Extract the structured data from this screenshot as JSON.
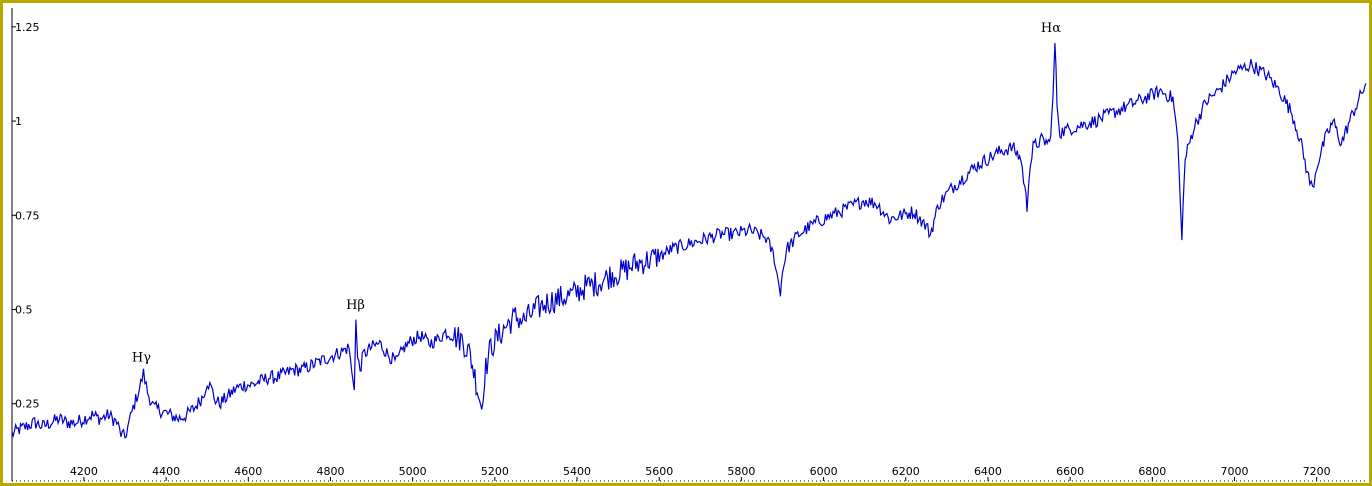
{
  "colors": {
    "frame": "#b8a800",
    "series": "#0000cc",
    "axis": "#000000"
  },
  "chart_data": {
    "type": "line",
    "title": "",
    "xlabel": "",
    "ylabel": "",
    "xlim": [
      4025,
      7320
    ],
    "ylim": [
      0.045,
      1.3
    ],
    "xticks": [
      4200,
      4400,
      4600,
      4800,
      5000,
      5200,
      5400,
      5600,
      5800,
      6000,
      6200,
      6400,
      6600,
      6800,
      7000,
      7200
    ],
    "xtick_labels": [
      "4200",
      "4400",
      "4600",
      "4800",
      "5000",
      "5200",
      "5400",
      "5600",
      "5800",
      "6000",
      "6200",
      "6400",
      "6600",
      "6800",
      "7000",
      "7200"
    ],
    "yticks": [
      0.25,
      0.5,
      0.75,
      1.0,
      1.25
    ],
    "ytick_labels": [
      "0.25",
      "0.5",
      "0.75",
      "1",
      "1.25"
    ],
    "grid": false,
    "legend": "none",
    "annotations": [
      {
        "text": "Hγ",
        "x": 4340,
        "y": 0.335
      },
      {
        "text": "Hβ",
        "x": 4861,
        "y": 0.475
      },
      {
        "text": "Hα",
        "x": 6563,
        "y": 1.21
      }
    ],
    "series": [
      {
        "x": [
          4025,
          4040,
          4060,
          4080,
          4100,
          4120,
          4140,
          4160,
          4180,
          4200,
          4220,
          4240,
          4260,
          4280,
          4290,
          4300,
          4310,
          4320,
          4335,
          4345,
          4355,
          4370,
          4390,
          4410,
          4430,
          4450,
          4470,
          4490,
          4500,
          4510,
          4520,
          4530,
          4550,
          4570,
          4590,
          4610,
          4630,
          4650,
          4670,
          4690,
          4710,
          4730,
          4750,
          4770,
          4790,
          4810,
          4830,
          4845,
          4852,
          4858,
          4862,
          4866,
          4872,
          4880,
          4900,
          4920,
          4940,
          4960,
          4980,
          5000,
          5020,
          5040,
          5060,
          5080,
          5100,
          5120,
          5140,
          5160,
          5168,
          5175,
          5190,
          5210,
          5230,
          5250,
          5270,
          5300,
          5330,
          5360,
          5390,
          5420,
          5450,
          5480,
          5510,
          5540,
          5570,
          5600,
          5630,
          5660,
          5690,
          5720,
          5750,
          5780,
          5820,
          5860,
          5880,
          5890,
          5895,
          5900,
          5910,
          5940,
          5980,
          6020,
          6060,
          6100,
          6130,
          6160,
          6190,
          6220,
          6250,
          6260,
          6280,
          6310,
          6340,
          6370,
          6400,
          6430,
          6460,
          6480,
          6490,
          6495,
          6500,
          6510,
          6530,
          6550,
          6558,
          6563,
          6568,
          6575,
          6600,
          6630,
          6660,
          6700,
          6740,
          6780,
          6820,
          6850,
          6862,
          6868,
          6872,
          6880,
          6900,
          6930,
          6960,
          7000,
          7040,
          7080,
          7110,
          7140,
          7160,
          7180,
          7190,
          7200,
          7220,
          7240,
          7260,
          7280,
          7300,
          7320
        ],
        "y": [
          0.17,
          0.18,
          0.19,
          0.2,
          0.19,
          0.2,
          0.21,
          0.2,
          0.2,
          0.21,
          0.22,
          0.21,
          0.22,
          0.2,
          0.17,
          0.16,
          0.2,
          0.24,
          0.29,
          0.33,
          0.28,
          0.24,
          0.23,
          0.22,
          0.21,
          0.22,
          0.24,
          0.27,
          0.31,
          0.29,
          0.26,
          0.25,
          0.27,
          0.29,
          0.3,
          0.3,
          0.31,
          0.32,
          0.32,
          0.33,
          0.34,
          0.34,
          0.35,
          0.36,
          0.37,
          0.38,
          0.39,
          0.4,
          0.33,
          0.3,
          0.47,
          0.37,
          0.34,
          0.38,
          0.4,
          0.41,
          0.38,
          0.36,
          0.4,
          0.42,
          0.43,
          0.41,
          0.42,
          0.44,
          0.43,
          0.42,
          0.38,
          0.28,
          0.24,
          0.33,
          0.4,
          0.43,
          0.46,
          0.48,
          0.47,
          0.5,
          0.52,
          0.53,
          0.54,
          0.56,
          0.57,
          0.59,
          0.6,
          0.62,
          0.63,
          0.64,
          0.66,
          0.67,
          0.68,
          0.69,
          0.7,
          0.7,
          0.71,
          0.69,
          0.64,
          0.57,
          0.55,
          0.6,
          0.66,
          0.7,
          0.73,
          0.75,
          0.77,
          0.79,
          0.78,
          0.74,
          0.75,
          0.76,
          0.72,
          0.7,
          0.78,
          0.82,
          0.85,
          0.88,
          0.9,
          0.92,
          0.93,
          0.9,
          0.82,
          0.77,
          0.86,
          0.93,
          0.95,
          0.94,
          1.05,
          1.21,
          1.05,
          0.97,
          0.98,
          0.99,
          1.0,
          1.02,
          1.04,
          1.06,
          1.08,
          1.06,
          0.95,
          0.78,
          0.7,
          0.9,
          0.98,
          1.05,
          1.08,
          1.13,
          1.15,
          1.12,
          1.08,
          1.02,
          0.95,
          0.85,
          0.82,
          0.88,
          0.95,
          1.0,
          0.94,
          1.0,
          1.05,
          1.1
        ]
      }
    ]
  }
}
